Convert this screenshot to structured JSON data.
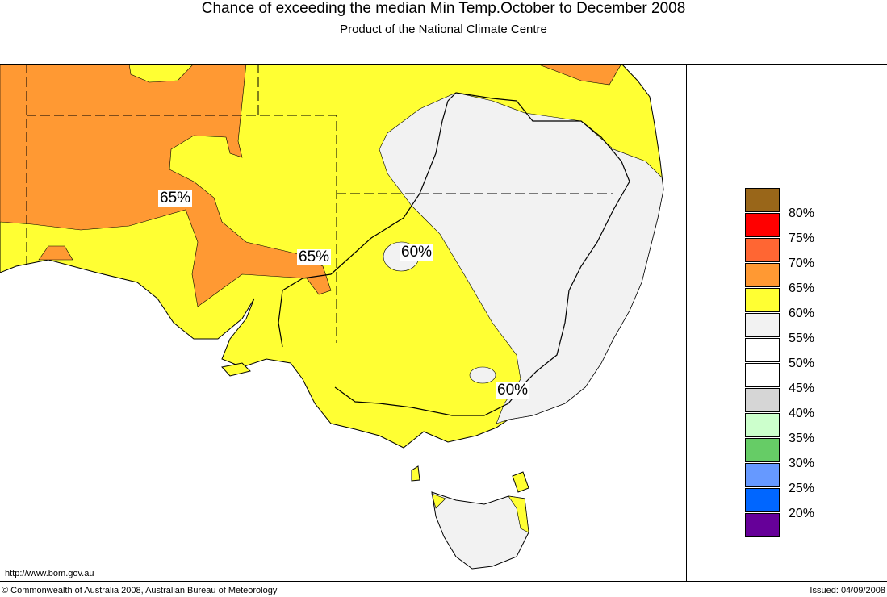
{
  "header": {
    "title": "Chance of exceeding the median Min Temp.October to December 2008",
    "subtitle": "Product of the National Climate Centre"
  },
  "map_labels": [
    "65%",
    "65%",
    "60%",
    "60%"
  ],
  "legend": [
    {
      "label": "80%",
      "color": "#996619"
    },
    {
      "label": "75%",
      "color": "#ff0000"
    },
    {
      "label": "70%",
      "color": "#ff6633"
    },
    {
      "label": "65%",
      "color": "#ff9933"
    },
    {
      "label": "60%",
      "color": "#ffff33"
    },
    {
      "label": "55%",
      "color": "#f2f2f2"
    },
    {
      "label": "50%",
      "color": "#ffffff"
    },
    {
      "label": "45%",
      "color": "#ffffff"
    },
    {
      "label": "40%",
      "color": "#d6d6d6"
    },
    {
      "label": "35%",
      "color": "#ccffcc"
    },
    {
      "label": "30%",
      "color": "#66cc66"
    },
    {
      "label": "25%",
      "color": "#6699ff"
    },
    {
      "label": "20%",
      "color": "#0066ff"
    },
    {
      "label": "",
      "color": "#660099"
    }
  ],
  "footer": {
    "url": "http://www.bom.gov.au",
    "copyright": "© Commonwealth of Australia 2008, Australian Bureau of Meteorology",
    "issued": "Issued: 04/09/2008"
  }
}
